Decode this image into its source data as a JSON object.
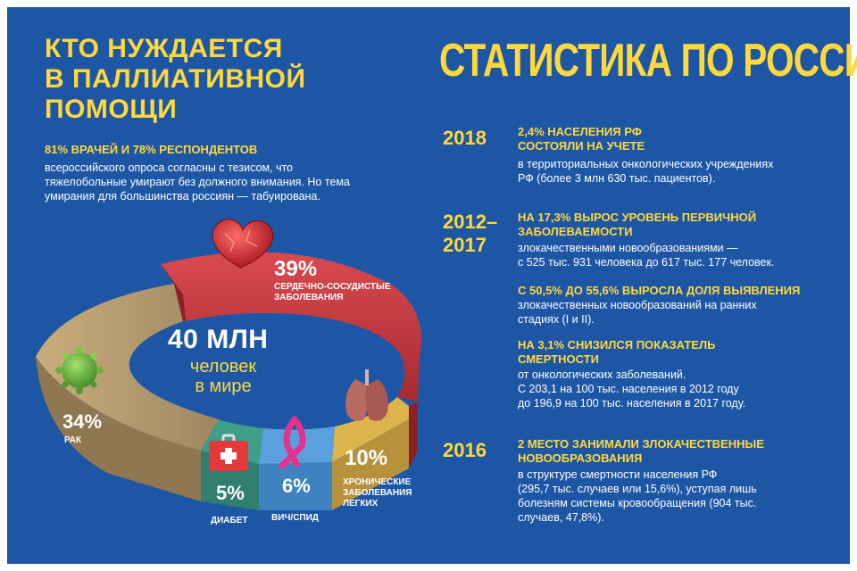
{
  "left": {
    "title_lines": [
      "КТО НУЖДАЕТСЯ",
      "В ПАЛЛИАТИВНОЙ",
      "ПОМОЩИ"
    ],
    "lead_highlight": "81% ВРАЧЕЙ И 78% РЕСПОНДЕНТОВ",
    "lead_lines": [
      "всероссийского опроса  согласны с тезисом, что",
      "тяжелобольные умирают без должного внимания. Но тема",
      "умирания для большинства россиян — табуирована."
    ]
  },
  "chart_data": {
    "type": "pie",
    "center_value": "40 МЛН",
    "center_lines": [
      "человек",
      "в мире"
    ],
    "slices": [
      {
        "label_lines": [
          "СЕРДЕЧНО-СОСУДИСТЫЕ",
          "ЗАБОЛЕВАНИЯ"
        ],
        "value_label": "39%",
        "value": 39,
        "color": "#c5343c"
      },
      {
        "label_lines": [
          "ХРОНИЧЕСКИЕ",
          "ЗАБОЛЕВАНИЯ",
          "ЛЕГКИХ"
        ],
        "value_label": "10%",
        "value": 10,
        "color": "#dcb44c"
      },
      {
        "label_lines": [
          "ВИЧ/СПИД"
        ],
        "value_label": "6%",
        "value": 6,
        "color": "#5aa0de"
      },
      {
        "label_lines": [
          "ДИАБЕТ"
        ],
        "value_label": "5%",
        "value": 5,
        "color": "#3d9e8a"
      },
      {
        "label_lines": [
          "РАК"
        ],
        "value_label": "34%",
        "value": 34,
        "color": "#b59a6e"
      }
    ]
  },
  "right": {
    "title": "СТАТИСТИКА ПО РОССИИ",
    "entries": [
      {
        "year_lines": [
          "2018"
        ],
        "headline_lines": [
          "2,4% НАСЕЛЕНИЯ РФ",
          "СОСТОЯЛИ НА УЧЕТЕ"
        ],
        "text_lines": [
          "в территориальных онкологических учреждениях",
          "РФ (более 3 млн 630 тыс. пациентов)."
        ]
      },
      {
        "year_lines": [
          "2012–",
          "2017"
        ],
        "headline_lines": [
          "НА 17,3% ВЫРОС УРОВЕНЬ ПЕРВИЧНОЙ",
          "ЗАБОЛЕВАЕМОСТИ"
        ],
        "text_lines": [
          "злокачественными новообразованиями —",
          "с 525 тыс. 931 человека  до 617 тыс. 177 человек."
        ]
      },
      {
        "year_lines": [],
        "headline_lines": [
          "С 50,5% ДО 55,6% ВЫРОСЛА ДОЛЯ ВЫЯВЛЕНИЯ"
        ],
        "text_lines": [
          "злокачественных новообразований на ранних",
          "стадиях (I и II)."
        ]
      },
      {
        "year_lines": [],
        "headline_lines": [
          "НА 3,1% СНИЗИЛСЯ ПОКАЗАТЕЛЬ",
          "СМЕРТНОСТИ"
        ],
        "text_lines": [
          "от онкологических заболеваний.",
          "С 203,1 на 100 тыс. населения в 2012 году",
          "до 196,9 на 100 тыс. населения в 2017 году."
        ]
      },
      {
        "year_lines": [
          "2016"
        ],
        "headline_lines": [
          "2 МЕСТО ЗАНИМАЛИ ЗЛОКАЧЕСТВЕННЫЕ",
          "НОВООБРАЗОВАНИЯ"
        ],
        "text_lines": [
          "в структуре смертности населения РФ",
          "(295,7 тыс. случаев или 15,6%), уступая лишь",
          "болезням системы кровообращения (904 тыс.",
          "случаев, 47,8%)."
        ]
      }
    ]
  },
  "icons": [
    "heart-icon",
    "virus-icon",
    "lungs-icon",
    "ribbon-icon",
    "first-aid-kit-icon"
  ]
}
